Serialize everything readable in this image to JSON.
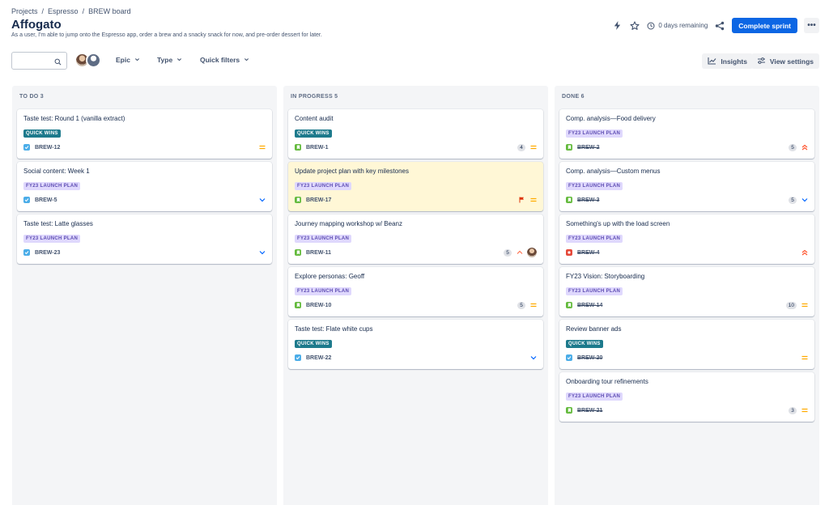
{
  "breadcrumb": [
    "Projects",
    "Espresso",
    "BREW board"
  ],
  "title": "Affogato",
  "subtitle": "As a user, I'm able to jump onto the Espresso app, order a brew and a snacky snack for now, and pre-order dessert for later.",
  "header": {
    "days_remaining": "0 days remaining",
    "complete_sprint": "Complete sprint",
    "more": "•••"
  },
  "toolbar": {
    "epic": "Epic",
    "type": "Type",
    "quick_filters": "Quick filters",
    "insights": "Insights",
    "view_settings": "View settings"
  },
  "columns": [
    {
      "title": "TO DO 3",
      "cards": [
        {
          "title": "Taste test: Round 1 (vanilla extract)",
          "label": "QUICK WINS",
          "key": "BREW-12"
        },
        {
          "title": "Social content: Week 1",
          "label": "FY23 LAUNCH PLAN",
          "key": "BREW-5"
        },
        {
          "title": "Taste test: Latte glasses",
          "label": "FY23 LAUNCH PLAN",
          "key": "BREW-23"
        }
      ]
    },
    {
      "title": "IN PROGRESS 5",
      "cards": [
        {
          "title": "Content audit",
          "label": "QUICK WINS",
          "key": "BREW-1",
          "points": "4"
        },
        {
          "title": "Update project plan with key milestones",
          "label": "FY23 LAUNCH PLAN",
          "key": "BREW-17"
        },
        {
          "title": "Journey mapping workshop w/ Beanz",
          "label": "FY23 LAUNCH PLAN",
          "key": "BREW-11",
          "points": "5"
        },
        {
          "title": "Explore personas: Geoff",
          "label": "FY23 LAUNCH PLAN",
          "key": "BREW-10",
          "points": "5"
        },
        {
          "title": "Taste test: Flate white cups",
          "label": "QUICK WINS",
          "key": "BREW-22"
        }
      ]
    },
    {
      "title": "DONE 6",
      "cards": [
        {
          "title": "Comp. analysis—Food delivery",
          "label": "FY23 LAUNCH PLAN",
          "key": "BREW-2",
          "points": "5"
        },
        {
          "title": "Comp. analysis—Custom menus",
          "label": "FY23 LAUNCH PLAN",
          "key": "BREW-3",
          "points": "5"
        },
        {
          "title": "Something's up with the load screen",
          "label": "FY23 LAUNCH PLAN",
          "key": "BREW-4"
        },
        {
          "title": "FY23 Vision: Storyboarding",
          "label": "FY23 LAUNCH PLAN",
          "key": "BREW-14",
          "points": "10"
        },
        {
          "title": "Review banner ads",
          "label": "QUICK WINS",
          "key": "BREW-20"
        },
        {
          "title": "Onboarding tour refinements",
          "label": "FY23 LAUNCH PLAN",
          "key": "BREW-21",
          "points": "3"
        }
      ]
    }
  ]
}
